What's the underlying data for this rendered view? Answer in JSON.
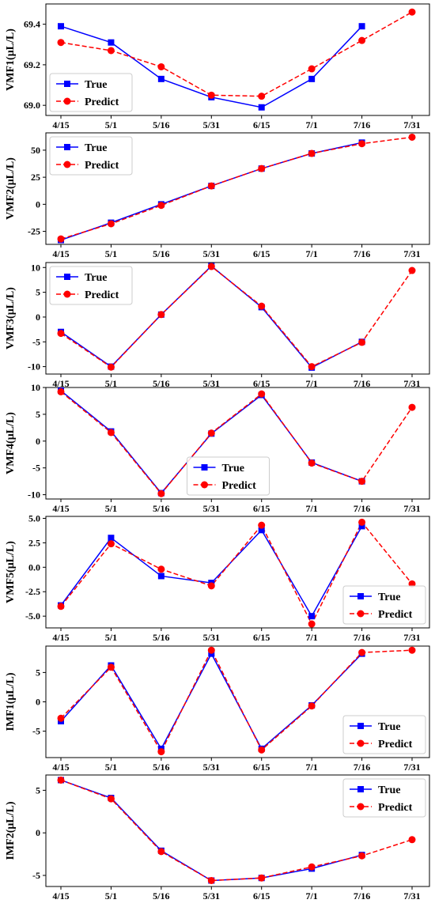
{
  "chart_data": [
    {
      "type": "line",
      "ylabel": "VMF1(μL/L)",
      "categories": [
        "4/15",
        "5/1",
        "5/16",
        "5/31",
        "6/15",
        "7/1",
        "7/16",
        "7/31"
      ],
      "ylim": [
        68.95,
        69.5
      ],
      "yticks": [
        {
          "value": 69,
          "label": "69.0"
        },
        69.2,
        69.4
      ],
      "legend": "lower left",
      "series": [
        {
          "name": "True",
          "color": "#0000ff",
          "marker": "square",
          "linestyle": "solid",
          "values": [
            69.39,
            69.31,
            69.13,
            69.04,
            68.99,
            69.13,
            69.39,
            null
          ]
        },
        {
          "name": "Predict",
          "color": "#ff0000",
          "marker": "circle",
          "linestyle": "dashed",
          "values": [
            69.31,
            69.27,
            69.19,
            69.05,
            69.045,
            69.18,
            69.32,
            69.46
          ]
        }
      ]
    },
    {
      "type": "line",
      "ylabel": "VMF2(μL/L)",
      "categories": [
        "4/15",
        "5/1",
        "5/16",
        "5/31",
        "6/15",
        "7/1",
        "7/16",
        "7/31"
      ],
      "ylim": [
        -37,
        66
      ],
      "yticks": [
        -25,
        0,
        25,
        50
      ],
      "legend": "upper left",
      "series": [
        {
          "name": "True",
          "color": "#0000ff",
          "marker": "square",
          "linestyle": "solid",
          "values": [
            -33,
            -17,
            0,
            17,
            33,
            47,
            57,
            null
          ]
        },
        {
          "name": "Predict",
          "color": "#ff0000",
          "marker": "circle",
          "linestyle": "dashed",
          "values": [
            -32,
            -18,
            -1,
            17,
            33,
            47,
            56,
            62
          ]
        }
      ]
    },
    {
      "type": "line",
      "ylabel": "VMF3(μL/L)",
      "categories": [
        "4/15",
        "5/1",
        "5/16",
        "5/31",
        "6/15",
        "7/1",
        "7/16",
        "7/31"
      ],
      "ylim": [
        -11.5,
        11
      ],
      "yticks": [
        -10,
        -5,
        0,
        5,
        10
      ],
      "legend": "upper left",
      "series": [
        {
          "name": "True",
          "color": "#0000ff",
          "marker": "square",
          "linestyle": "solid",
          "values": [
            -3,
            -10,
            0.5,
            10.3,
            2,
            -10.2,
            -5,
            null
          ]
        },
        {
          "name": "Predict",
          "color": "#ff0000",
          "marker": "circle",
          "linestyle": "dashed",
          "values": [
            -3.3,
            -10.1,
            0.5,
            10.2,
            2.2,
            -10,
            -5.1,
            9.4
          ]
        }
      ]
    },
    {
      "type": "line",
      "ylabel": "VMF4(μL/L)",
      "categories": [
        "4/15",
        "5/1",
        "5/16",
        "5/31",
        "6/15",
        "7/1",
        "7/16",
        "7/31"
      ],
      "ylim": [
        -10.8,
        10
      ],
      "yticks": [
        -10,
        -5,
        0,
        5,
        10
      ],
      "legend": "lower center",
      "series": [
        {
          "name": "True",
          "color": "#0000ff",
          "marker": "square",
          "linestyle": "solid",
          "values": [
            9.4,
            1.8,
            -9.7,
            1.4,
            8.6,
            -4,
            -7.5,
            null
          ]
        },
        {
          "name": "Predict",
          "color": "#ff0000",
          "marker": "circle",
          "linestyle": "dashed",
          "values": [
            9.2,
            1.6,
            -9.8,
            1.5,
            8.8,
            -4.1,
            -7.5,
            6.3
          ]
        }
      ]
    },
    {
      "type": "line",
      "ylabel": "VMF5(μL/L)",
      "categories": [
        "4/15",
        "5/1",
        "5/16",
        "5/31",
        "6/15",
        "7/1",
        "7/16",
        "7/31"
      ],
      "ylim": [
        -6.2,
        5.2
      ],
      "yticks": [
        {
          "value": -5,
          "label": "-5.0"
        },
        -2.5,
        {
          "value": 0,
          "label": "0.0"
        },
        2.5,
        {
          "value": 5,
          "label": "5.0"
        }
      ],
      "legend": "lower right",
      "series": [
        {
          "name": "True",
          "color": "#0000ff",
          "marker": "square",
          "linestyle": "solid",
          "values": [
            -3.9,
            3,
            -0.9,
            -1.6,
            3.8,
            -5,
            4.2,
            null
          ]
        },
        {
          "name": "Predict",
          "color": "#ff0000",
          "marker": "circle",
          "linestyle": "dashed",
          "values": [
            -4,
            2.4,
            -0.2,
            -1.9,
            4.3,
            -5.8,
            4.6,
            -1.7
          ]
        }
      ]
    },
    {
      "type": "line",
      "ylabel": "IMF1(μL/L)",
      "categories": [
        "4/15",
        "5/1",
        "5/16",
        "5/31",
        "6/15",
        "7/1",
        "7/16",
        "7/31"
      ],
      "ylim": [
        -9.5,
        9.5
      ],
      "yticks": [
        -5,
        0,
        5
      ],
      "legend": "lower right",
      "series": [
        {
          "name": "True",
          "color": "#0000ff",
          "marker": "square",
          "linestyle": "solid",
          "values": [
            -3.3,
            6.2,
            -8,
            8.2,
            -8,
            -0.6,
            8.2,
            null
          ]
        },
        {
          "name": "Predict",
          "color": "#ff0000",
          "marker": "circle",
          "linestyle": "dashed",
          "values": [
            -2.8,
            5.9,
            -8.5,
            8.8,
            -8.2,
            -0.7,
            8.4,
            8.8
          ]
        }
      ]
    },
    {
      "type": "line",
      "ylabel": "IMF2(μL/L)",
      "categories": [
        "4/15",
        "5/1",
        "5/16",
        "5/31",
        "6/15",
        "7/1",
        "7/16",
        "7/31"
      ],
      "ylim": [
        -6.3,
        6.8
      ],
      "yticks": [
        -5,
        0,
        5
      ],
      "legend": "upper right",
      "series": [
        {
          "name": "True",
          "color": "#0000ff",
          "marker": "square",
          "linestyle": "solid",
          "values": [
            6.2,
            4.1,
            -2.1,
            -5.6,
            -5.3,
            -4.2,
            -2.6,
            null
          ]
        },
        {
          "name": "Predict",
          "color": "#ff0000",
          "marker": "circle",
          "linestyle": "dashed",
          "values": [
            6.2,
            4.0,
            -2.2,
            -5.6,
            -5.3,
            -4.0,
            -2.7,
            -0.8
          ]
        }
      ]
    }
  ]
}
